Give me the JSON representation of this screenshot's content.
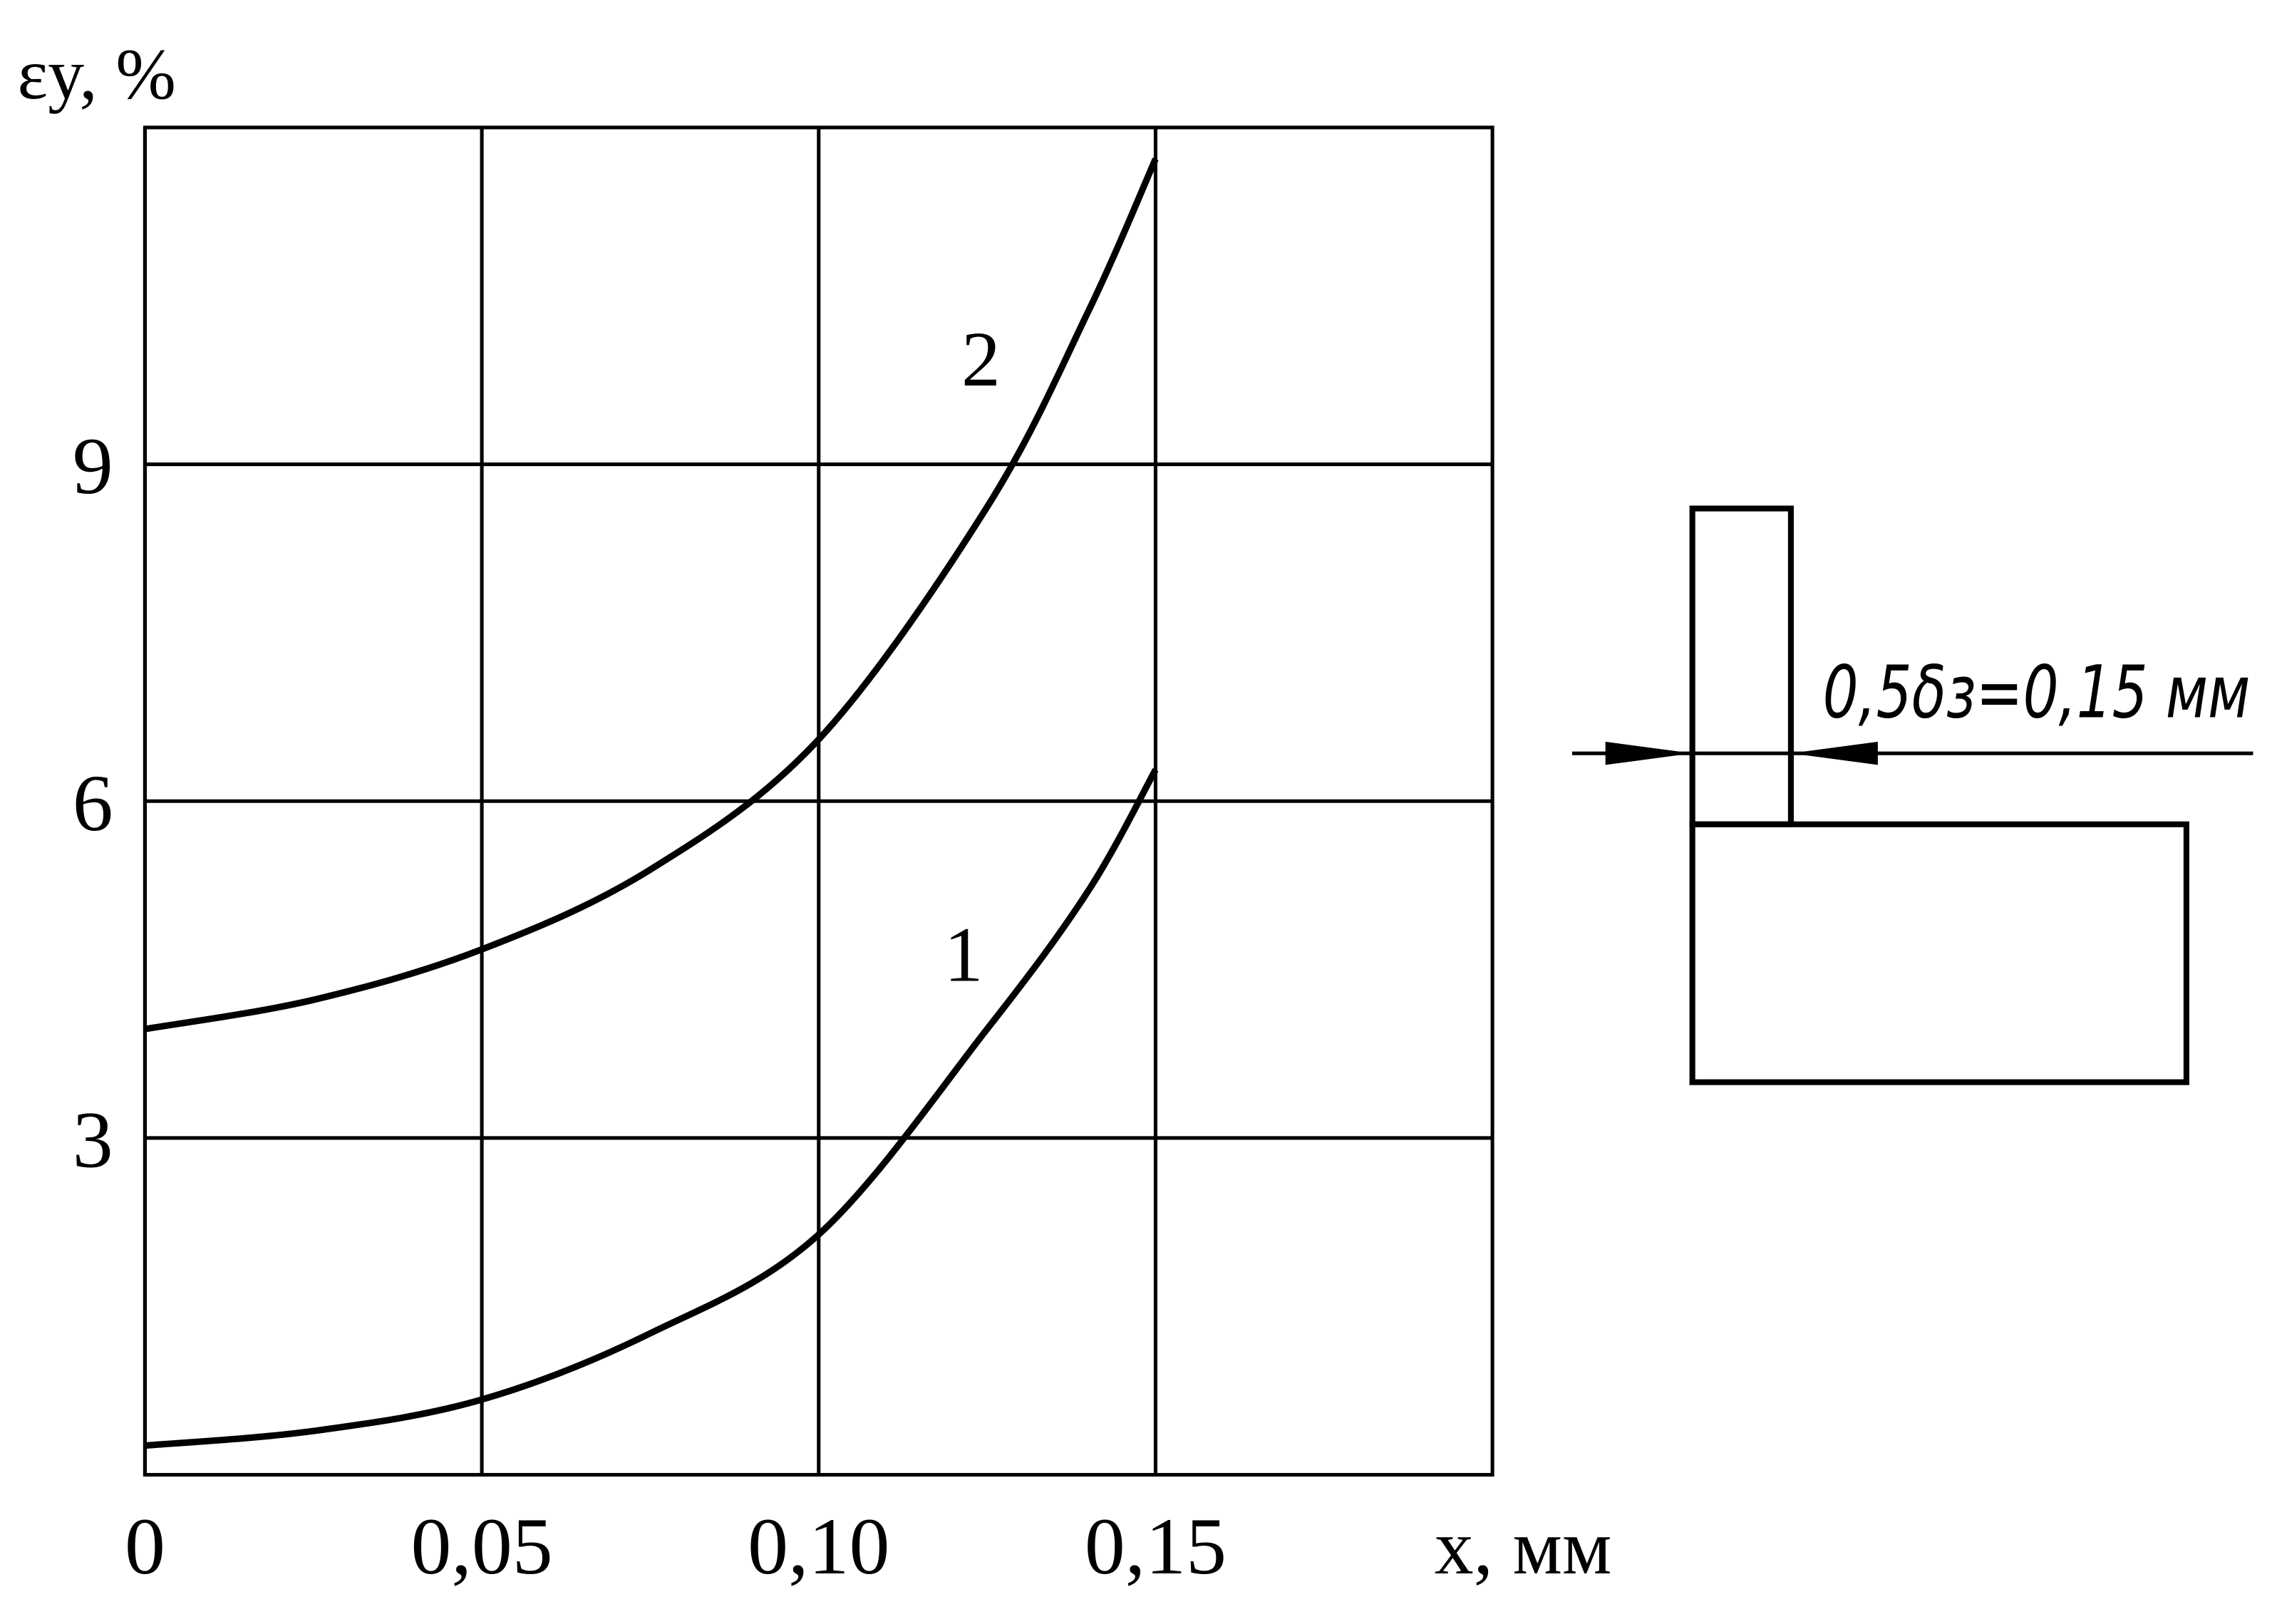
{
  "chart_data": {
    "type": "line",
    "ylabel": "εy, %",
    "xlabel": "x, мм",
    "x": [
      0,
      0.025,
      0.05,
      0.075,
      0.1,
      0.125,
      0.14,
      0.15
    ],
    "series": [
      {
        "name": "1",
        "color": "#000000",
        "values": [
          0.26,
          0.39,
          0.67,
          1.26,
          2.14,
          3.97,
          5.2,
          6.28
        ]
      },
      {
        "name": "2",
        "color": "#000000",
        "values": [
          3.97,
          4.23,
          4.68,
          5.39,
          6.55,
          8.62,
          10.36,
          11.72
        ]
      }
    ],
    "xlim": [
      0,
      0.2
    ],
    "ylim": [
      0,
      12
    ],
    "xticks": [
      0,
      {
        "value": 0.05,
        "label": "0,05"
      },
      {
        "value": 0.1,
        "label": "0,10"
      },
      {
        "value": 0.15,
        "label": "0,15"
      }
    ],
    "yticks": [
      3,
      6,
      9
    ],
    "grid": true,
    "annotation": "0,5δз=0,15 мм"
  }
}
